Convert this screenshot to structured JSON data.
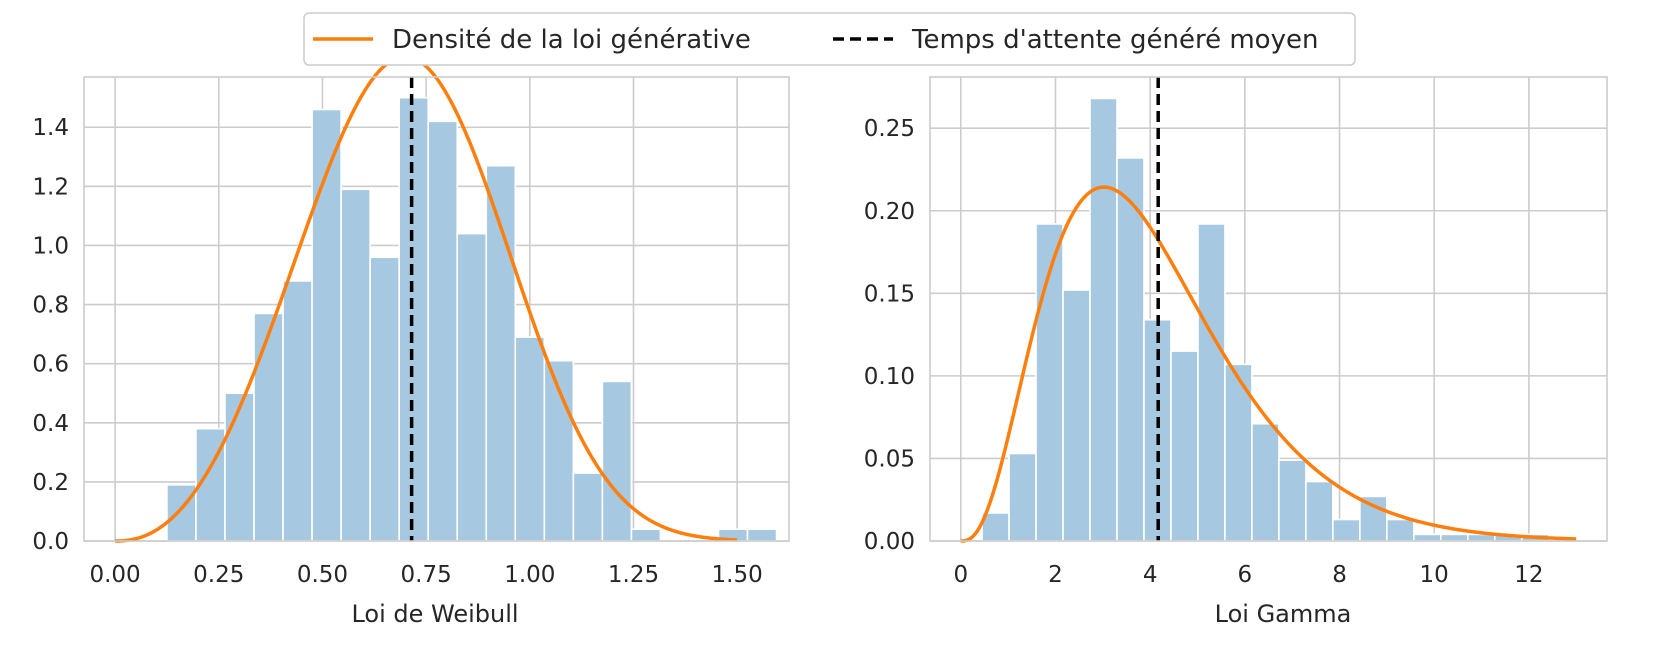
{
  "legend": {
    "items": [
      {
        "label": "Densité de la loi générative",
        "color": "#ff7f0e",
        "style": "solid"
      },
      {
        "label": "Temps d'attente généré moyen",
        "color": "#000000",
        "style": "dashed"
      }
    ]
  },
  "colors": {
    "hist_fill": "#a6c8e0",
    "hist_edge": "#ffffff",
    "density": "#ff7f0e",
    "mean_line": "#000000",
    "grid": "#cccccc",
    "frame": "#cccccc"
  },
  "chart_data": [
    {
      "type": "histogram",
      "xlabel": "Loi de Weibull",
      "ylabel": "",
      "xlim": [
        -0.075,
        1.625
      ],
      "ylim": [
        0,
        1.57
      ],
      "xticks": [
        0.0,
        0.25,
        0.5,
        0.75,
        1.0,
        1.25,
        1.5
      ],
      "xtick_labels": [
        "0.00",
        "0.25",
        "0.50",
        "0.75",
        "1.00",
        "1.25",
        "1.50"
      ],
      "yticks": [
        0.0,
        0.2,
        0.4,
        0.6,
        0.8,
        1.0,
        1.2,
        1.4
      ],
      "ytick_labels": [
        "0.0",
        "0.2",
        "0.4",
        "0.6",
        "0.8",
        "1.0",
        "1.2",
        "1.4"
      ],
      "grid": true,
      "bins": [
        {
          "x0": 0.125,
          "x1": 0.195,
          "value": 0.19
        },
        {
          "x0": 0.195,
          "x1": 0.265,
          "value": 0.38
        },
        {
          "x0": 0.265,
          "x1": 0.335,
          "value": 0.5
        },
        {
          "x0": 0.335,
          "x1": 0.405,
          "value": 0.77
        },
        {
          "x0": 0.405,
          "x1": 0.475,
          "value": 0.88
        },
        {
          "x0": 0.475,
          "x1": 0.545,
          "value": 1.46
        },
        {
          "x0": 0.545,
          "x1": 0.615,
          "value": 1.19
        },
        {
          "x0": 0.615,
          "x1": 0.685,
          "value": 0.96
        },
        {
          "x0": 0.685,
          "x1": 0.755,
          "value": 1.5
        },
        {
          "x0": 0.755,
          "x1": 0.825,
          "value": 1.42
        },
        {
          "x0": 0.825,
          "x1": 0.895,
          "value": 1.04
        },
        {
          "x0": 0.895,
          "x1": 0.965,
          "value": 1.27
        },
        {
          "x0": 0.965,
          "x1": 1.035,
          "value": 0.69
        },
        {
          "x0": 1.035,
          "x1": 1.105,
          "value": 0.61
        },
        {
          "x0": 1.105,
          "x1": 1.175,
          "value": 0.23
        },
        {
          "x0": 1.175,
          "x1": 1.245,
          "value": 0.54
        },
        {
          "x0": 1.245,
          "x1": 1.315,
          "value": 0.04
        },
        {
          "x0": 1.315,
          "x1": 1.385,
          "value": 0.0
        },
        {
          "x0": 1.385,
          "x1": 1.455,
          "value": 0.0
        },
        {
          "x0": 1.455,
          "x1": 1.525,
          "value": 0.04
        },
        {
          "x0": 1.525,
          "x1": 1.595,
          "value": 0.04
        }
      ],
      "density": {
        "distribution": "weibull",
        "shape": 3.3,
        "scale": 0.78,
        "x_range": [
          0.0,
          1.5
        ]
      },
      "mean": 0.715
    },
    {
      "type": "histogram",
      "xlabel": "Loi Gamma",
      "ylabel": "",
      "xlim": [
        -0.65,
        13.65
      ],
      "ylim": [
        0,
        0.281
      ],
      "xticks": [
        0,
        2,
        4,
        6,
        8,
        10,
        12
      ],
      "xtick_labels": [
        "0",
        "2",
        "4",
        "6",
        "8",
        "10",
        "12"
      ],
      "yticks": [
        0.0,
        0.05,
        0.1,
        0.15,
        0.2,
        0.25
      ],
      "ytick_labels": [
        "0.00",
        "0.05",
        "0.10",
        "0.15",
        "0.20",
        "0.25"
      ],
      "grid": true,
      "bins": [
        {
          "x0": 0.45,
          "x1": 1.02,
          "value": 0.017
        },
        {
          "x0": 1.02,
          "x1": 1.59,
          "value": 0.053
        },
        {
          "x0": 1.59,
          "x1": 2.16,
          "value": 0.192
        },
        {
          "x0": 2.16,
          "x1": 2.73,
          "value": 0.152
        },
        {
          "x0": 2.73,
          "x1": 3.3,
          "value": 0.268
        },
        {
          "x0": 3.3,
          "x1": 3.87,
          "value": 0.232
        },
        {
          "x0": 3.87,
          "x1": 4.44,
          "value": 0.134
        },
        {
          "x0": 4.44,
          "x1": 5.01,
          "value": 0.115
        },
        {
          "x0": 5.01,
          "x1": 5.58,
          "value": 0.192
        },
        {
          "x0": 5.58,
          "x1": 6.15,
          "value": 0.107
        },
        {
          "x0": 6.15,
          "x1": 6.72,
          "value": 0.071
        },
        {
          "x0": 6.72,
          "x1": 7.29,
          "value": 0.049
        },
        {
          "x0": 7.29,
          "x1": 7.86,
          "value": 0.036
        },
        {
          "x0": 7.86,
          "x1": 8.43,
          "value": 0.013
        },
        {
          "x0": 8.43,
          "x1": 9.0,
          "value": 0.027
        },
        {
          "x0": 9.0,
          "x1": 9.57,
          "value": 0.013
        },
        {
          "x0": 9.57,
          "x1": 10.14,
          "value": 0.004
        },
        {
          "x0": 10.14,
          "x1": 10.71,
          "value": 0.004
        },
        {
          "x0": 10.71,
          "x1": 11.28,
          "value": 0.004
        },
        {
          "x0": 11.28,
          "x1": 11.85,
          "value": 0.004
        },
        {
          "x0": 11.85,
          "x1": 12.42,
          "value": 0.004
        }
      ],
      "density": {
        "distribution": "gamma",
        "shape": 3.8,
        "scale": 1.08,
        "x_range": [
          0.0,
          13.0
        ]
      },
      "mean": 4.17
    }
  ]
}
